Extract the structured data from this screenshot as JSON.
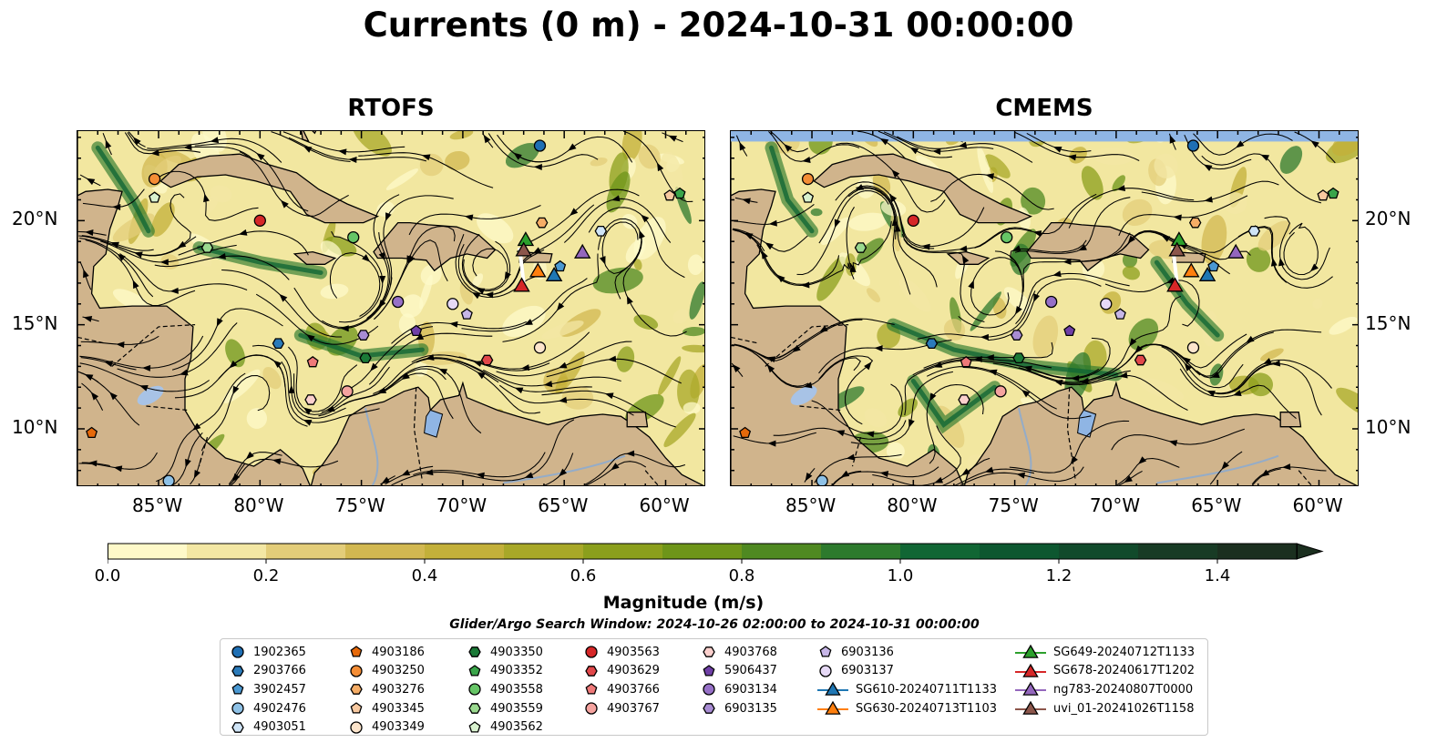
{
  "title": "Currents (0 m) - 2024-10-31 00:00:00",
  "panels": [
    {
      "id": "rtofs",
      "title": "RTOFS"
    },
    {
      "id": "cmems",
      "title": "CMEMS"
    }
  ],
  "axes": {
    "lon_ticks": [
      "85°W",
      "80°W",
      "75°W",
      "70°W",
      "65°W",
      "60°W"
    ],
    "lat_ticks": [
      "20°N",
      "15°N",
      "10°N"
    ],
    "lon_range": [
      -89,
      -58
    ],
    "lat_range": [
      7.2,
      24.3
    ]
  },
  "colorbar": {
    "label": "Magnitude (m/s)",
    "ticks": [
      "0.0",
      "0.2",
      "0.4",
      "0.6",
      "0.8",
      "1.0",
      "1.2",
      "1.4"
    ],
    "range": [
      0.0,
      1.5
    ],
    "extend": "max",
    "colors": [
      "#fef9c9",
      "#f3e7a4",
      "#e3cd79",
      "#d2b851",
      "#c3b03a",
      "#a8a828",
      "#8b9f1c",
      "#6e9519",
      "#4f8921",
      "#2d7a2d",
      "#116634",
      "#0d5730",
      "#114a2b",
      "#183b25",
      "#1b2f1f"
    ]
  },
  "search_window": "Glider/Argo Search Window: 2024-10-26 02:00:00 to 2024-10-31 00:00:00",
  "legend": [
    {
      "label": "1902365",
      "marker": "circle",
      "color": "#1f6fb4",
      "lon": -66.2,
      "lat": 23.6
    },
    {
      "label": "2903766",
      "marker": "hexagon",
      "color": "#2b7bba",
      "lon": -79.1,
      "lat": 14.1
    },
    {
      "label": "3902457",
      "marker": "pentagon",
      "color": "#4a98d2",
      "lon": -65.2,
      "lat": 17.8
    },
    {
      "label": "4902476",
      "marker": "circle",
      "color": "#8ec1e6",
      "lon": -84.5,
      "lat": 7.5
    },
    {
      "label": "4903051",
      "marker": "hexagon",
      "color": "#cfe4f6",
      "lon": -63.2,
      "lat": 19.5
    },
    {
      "label": "4903186",
      "marker": "pentagon",
      "color": "#e6690a",
      "lon": -88.3,
      "lat": 9.8
    },
    {
      "label": "4903250",
      "marker": "circle",
      "color": "#f48d35",
      "lon": -85.2,
      "lat": 22.0
    },
    {
      "label": "4903276",
      "marker": "hexagon",
      "color": "#f6ad66",
      "lon": -66.1,
      "lat": 19.9
    },
    {
      "label": "4903345",
      "marker": "pentagon",
      "color": "#f8c9a0",
      "lon": -59.8,
      "lat": 21.2
    },
    {
      "label": "4903349",
      "marker": "circle",
      "color": "#fde5cc",
      "lon": -66.2,
      "lat": 13.9
    },
    {
      "label": "4903350",
      "marker": "hexagon",
      "color": "#1b7a37",
      "lon": -74.8,
      "lat": 13.4
    },
    {
      "label": "4903352",
      "marker": "pentagon",
      "color": "#3aa54a",
      "lon": -59.3,
      "lat": 21.3
    },
    {
      "label": "4903558",
      "marker": "circle",
      "color": "#66c566",
      "lon": -75.4,
      "lat": 19.2
    },
    {
      "label": "4903559",
      "marker": "hexagon",
      "color": "#9ad98f",
      "lon": -82.6,
      "lat": 18.7
    },
    {
      "label": "4903562",
      "marker": "pentagon",
      "color": "#d9f2cf",
      "lon": -85.2,
      "lat": 21.1
    },
    {
      "label": "4903563",
      "marker": "circle",
      "color": "#d62728",
      "lon": -80.0,
      "lat": 20.0
    },
    {
      "label": "4903629",
      "marker": "hexagon",
      "color": "#e1474a",
      "lon": -68.8,
      "lat": 13.3
    },
    {
      "label": "4903766",
      "marker": "pentagon",
      "color": "#ef7979",
      "lon": -77.4,
      "lat": 13.2
    },
    {
      "label": "4903767",
      "marker": "circle",
      "color": "#f5a39f",
      "lon": -75.7,
      "lat": 11.8
    },
    {
      "label": "4903768",
      "marker": "hexagon",
      "color": "#fbd0cd",
      "lon": -77.5,
      "lat": 11.4
    },
    {
      "label": "5906437",
      "marker": "pentagon",
      "color": "#6f3fa6",
      "lon": -72.3,
      "lat": 14.7
    },
    {
      "label": "6903134",
      "marker": "circle",
      "color": "#9670c7",
      "lon": -73.2,
      "lat": 16.1
    },
    {
      "label": "6903135",
      "marker": "hexagon",
      "color": "#a88cd3",
      "lon": -74.9,
      "lat": 14.5
    },
    {
      "label": "6903136",
      "marker": "pentagon",
      "color": "#c7b6e7",
      "lon": -69.8,
      "lat": 15.5
    },
    {
      "label": "6903137",
      "marker": "circle",
      "color": "#e6d9f6",
      "lon": -70.5,
      "lat": 16.0
    },
    {
      "label": "SG610-20240711T1133",
      "marker": "triangle",
      "color": "#1f77b4",
      "lon": -65.5,
      "lat": 17.4,
      "line": true
    },
    {
      "label": "SG630-20240713T1103",
      "marker": "triangle",
      "color": "#ff7f0e",
      "lon": -66.3,
      "lat": 17.6,
      "line": true
    },
    {
      "label": "SG649-20240712T1133",
      "marker": "triangle",
      "color": "#2ca02c",
      "lon": -66.9,
      "lat": 19.1,
      "line": true
    },
    {
      "label": "SG678-20240617T1202",
      "marker": "triangle",
      "color": "#d62728",
      "lon": -67.1,
      "lat": 16.9,
      "line": true
    },
    {
      "label": "ng783-20240807T0000",
      "marker": "triangle",
      "color": "#9467bd",
      "lon": -64.1,
      "lat": 18.5,
      "line": true
    },
    {
      "label": "uvi_01-20241026T1158",
      "marker": "triangle",
      "color": "#8c564b",
      "lon": -67.0,
      "lat": 18.6,
      "line": true
    }
  ]
}
